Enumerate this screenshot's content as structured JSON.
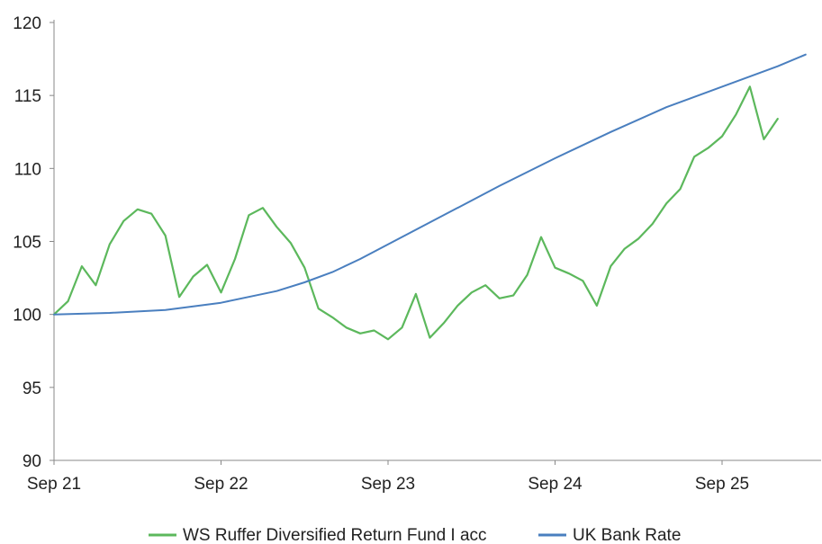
{
  "chart_data": {
    "type": "line",
    "title": "",
    "xlabel": "",
    "ylabel": "",
    "ylim": [
      90,
      120
    ],
    "y_ticks": [
      "90",
      "95",
      "100",
      "105",
      "110",
      "115",
      "120"
    ],
    "x_ticks": [
      "Sep 21",
      "Sep 22",
      "Sep 23",
      "Sep 24",
      "Sep 25"
    ],
    "grid": false,
    "legend_position": "bottom",
    "series": [
      {
        "name": "WS Ruffer Diversified Return Fund I acc",
        "color": "#5cb85c",
        "points": [
          [
            "2021-09",
            100.0
          ],
          [
            "2021-10",
            100.9
          ],
          [
            "2021-11",
            103.3
          ],
          [
            "2021-12",
            102.0
          ],
          [
            "2022-01",
            104.8
          ],
          [
            "2022-02",
            106.4
          ],
          [
            "2022-03",
            107.2
          ],
          [
            "2022-04",
            106.9
          ],
          [
            "2022-05",
            105.4
          ],
          [
            "2022-06",
            101.2
          ],
          [
            "2022-07",
            102.6
          ],
          [
            "2022-08",
            103.4
          ],
          [
            "2022-09",
            101.5
          ],
          [
            "2022-10",
            103.8
          ],
          [
            "2022-11",
            106.8
          ],
          [
            "2022-12",
            107.3
          ],
          [
            "2023-01",
            106.0
          ],
          [
            "2023-02",
            104.9
          ],
          [
            "2023-03",
            103.2
          ],
          [
            "2023-04",
            100.4
          ],
          [
            "2023-05",
            99.8
          ],
          [
            "2023-06",
            99.1
          ],
          [
            "2023-07",
            98.7
          ],
          [
            "2023-08",
            98.9
          ],
          [
            "2023-09",
            98.3
          ],
          [
            "2023-10",
            99.1
          ],
          [
            "2023-11",
            101.4
          ],
          [
            "2023-12",
            98.4
          ],
          [
            "2024-01",
            99.4
          ],
          [
            "2024-02",
            100.6
          ],
          [
            "2024-03",
            101.5
          ],
          [
            "2024-04",
            102.0
          ],
          [
            "2024-05",
            101.1
          ],
          [
            "2024-06",
            101.3
          ],
          [
            "2024-07",
            102.7
          ],
          [
            "2024-08",
            105.3
          ],
          [
            "2024-09",
            103.2
          ],
          [
            "2024-10",
            102.8
          ],
          [
            "2024-11",
            102.3
          ],
          [
            "2024-12",
            100.6
          ],
          [
            "2025-01",
            103.3
          ],
          [
            "2025-02",
            104.5
          ],
          [
            "2025-03",
            105.2
          ],
          [
            "2025-04",
            106.2
          ],
          [
            "2025-05",
            107.6
          ],
          [
            "2025-06",
            108.6
          ],
          [
            "2025-07",
            110.8
          ],
          [
            "2025-08",
            111.4
          ],
          [
            "2025-09",
            112.2
          ],
          [
            "2025-10",
            113.7
          ],
          [
            "2025-11",
            115.6
          ],
          [
            "2025-12",
            112.0
          ],
          [
            "2026-01",
            113.4
          ]
        ]
      },
      {
        "name": "UK Bank Rate",
        "color": "#4a7fbf",
        "points": [
          [
            "2021-09",
            100.0
          ],
          [
            "2022-01",
            100.1
          ],
          [
            "2022-05",
            100.3
          ],
          [
            "2022-09",
            100.8
          ],
          [
            "2023-01",
            101.6
          ],
          [
            "2023-03",
            102.2
          ],
          [
            "2023-05",
            102.9
          ],
          [
            "2023-07",
            103.8
          ],
          [
            "2023-09",
            104.8
          ],
          [
            "2024-01",
            106.8
          ],
          [
            "2024-05",
            108.8
          ],
          [
            "2024-09",
            110.7
          ],
          [
            "2025-01",
            112.5
          ],
          [
            "2025-05",
            114.2
          ],
          [
            "2025-09",
            115.6
          ],
          [
            "2026-01",
            117.0
          ],
          [
            "2026-03",
            117.8
          ]
        ]
      }
    ]
  }
}
